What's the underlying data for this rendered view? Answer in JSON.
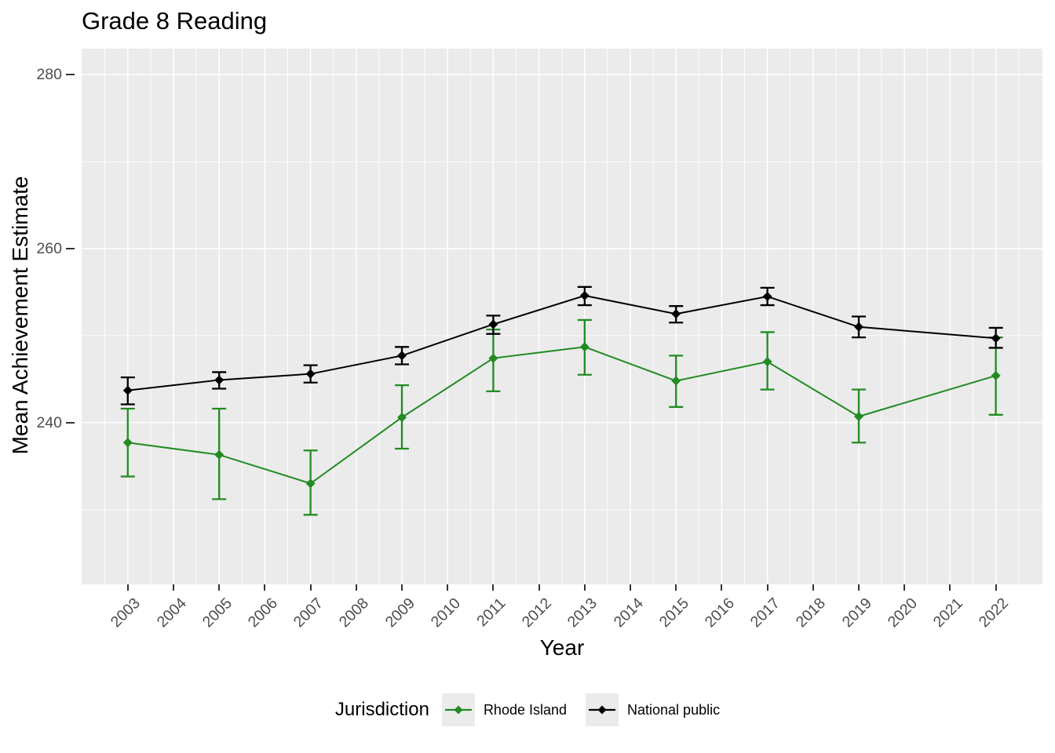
{
  "title": "Grade 8 Reading",
  "y_axis_title": "Mean Achievement Estimate",
  "x_axis_title": "Year",
  "legend": {
    "title": "Jurisdiction",
    "entries": [
      {
        "label": "Rhode Island",
        "color": "#228B22"
      },
      {
        "label": "National public",
        "color": "#000000"
      }
    ]
  },
  "colors": {
    "panel_background": "#EBEBEB",
    "gridline": "#FFFFFF",
    "tick_mark": "#333333",
    "tick_text": "#4D4D4D",
    "rhode_island_green": "#228B22",
    "national_public_black": "#000000"
  },
  "chart_data": {
    "type": "line",
    "title": "Grade 8 Reading",
    "xlabel": "Year",
    "ylabel": "Mean Achievement Estimate",
    "grid": true,
    "error_bars": true,
    "legend_position": "bottom",
    "panel_background": "#EBEBEB",
    "xlim": [
      2001.99,
      2023.02
    ],
    "ylim": [
      221.4,
      283.0
    ],
    "x_ticks": [
      2003,
      2004,
      2005,
      2006,
      2007,
      2008,
      2009,
      2010,
      2011,
      2012,
      2013,
      2014,
      2015,
      2016,
      2017,
      2018,
      2019,
      2020,
      2021,
      2022
    ],
    "y_ticks": [
      240,
      260,
      280
    ],
    "x": [
      2003,
      2005,
      2007,
      2009,
      2011,
      2013,
      2015,
      2017,
      2019,
      2022
    ],
    "series": [
      {
        "name": "Rhode Island",
        "color": "#228B22",
        "values": [
          237.7,
          236.3,
          233.0,
          240.6,
          247.4,
          248.7,
          244.8,
          247.0,
          240.7,
          245.4
        ],
        "err_lo": [
          233.8,
          231.2,
          229.4,
          237.0,
          243.6,
          245.5,
          241.8,
          243.8,
          237.7,
          240.9
        ],
        "err_hi": [
          241.6,
          241.6,
          236.8,
          244.3,
          250.7,
          251.8,
          247.7,
          250.4,
          243.8,
          249.8
        ]
      },
      {
        "name": "National public",
        "color": "#000000",
        "values": [
          243.7,
          244.9,
          245.6,
          247.7,
          251.3,
          254.6,
          252.5,
          254.5,
          251.0,
          249.7
        ],
        "err_lo": [
          242.1,
          243.9,
          244.6,
          246.7,
          250.2,
          253.5,
          251.5,
          253.5,
          249.8,
          248.6
        ],
        "err_hi": [
          245.2,
          245.8,
          246.6,
          248.7,
          252.3,
          255.6,
          253.4,
          255.5,
          252.2,
          250.9
        ]
      }
    ]
  }
}
